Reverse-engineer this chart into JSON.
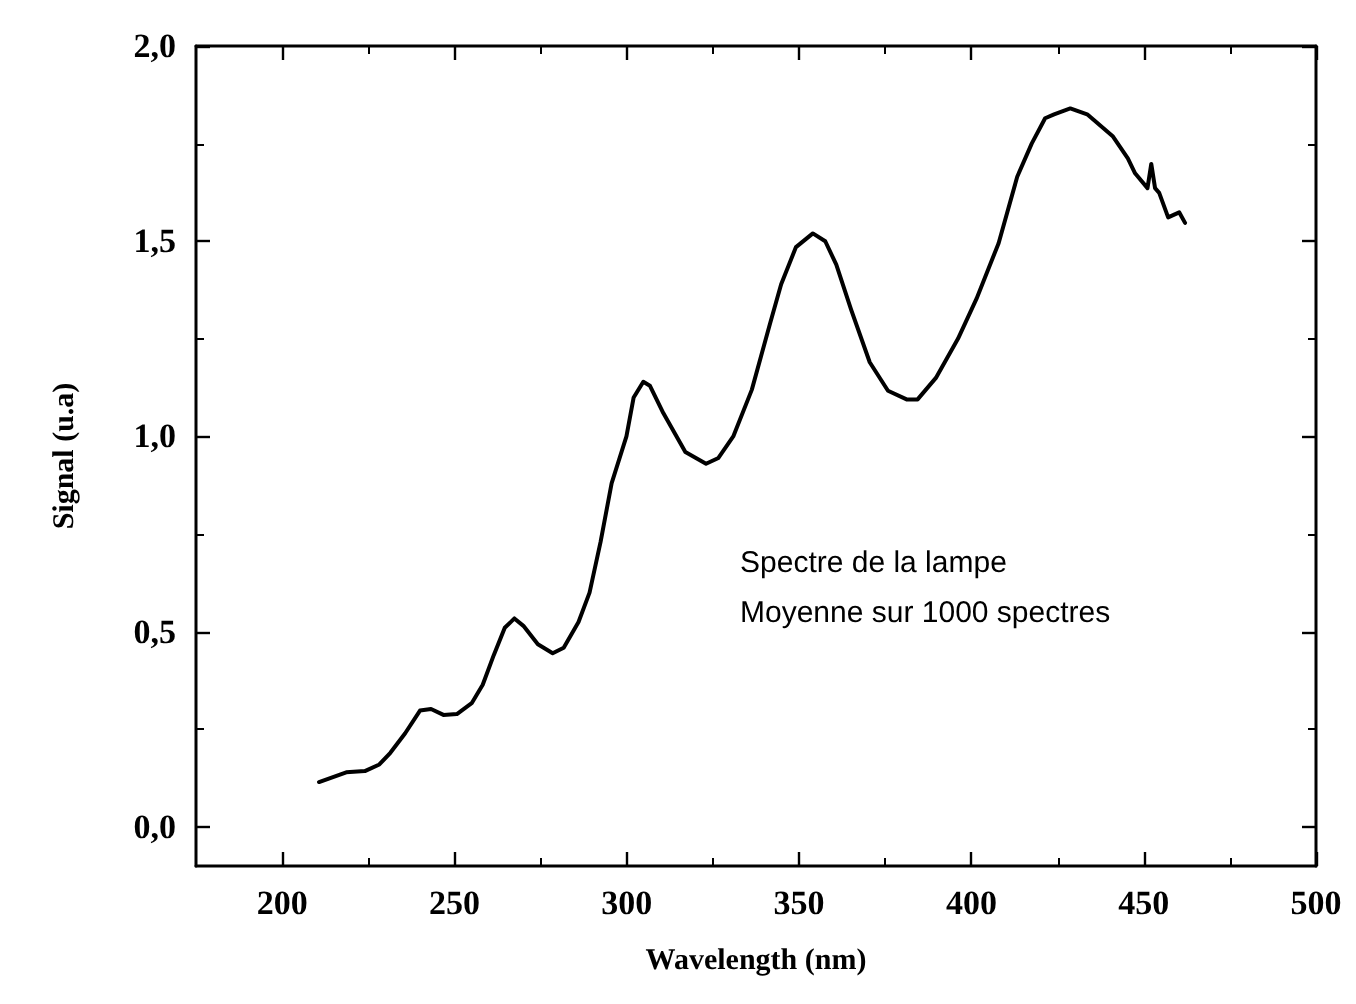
{
  "chart_data": {
    "type": "line",
    "xlabel": "Wavelength (nm)",
    "ylabel": "Signal (u.a)",
    "annotations": [
      "Spectre de la lampe",
      "Moyenne sur 1000 spectres"
    ],
    "xlim": [
      175,
      500
    ],
    "xticks": [
      200,
      250,
      300,
      350,
      400,
      450,
      500
    ],
    "ylim": [
      -0.1,
      2.0
    ],
    "yticks": [
      {
        "value": 0,
        "label": "0,0"
      },
      {
        "value": 0.5,
        "label": "0,5"
      },
      {
        "value": 1,
        "label": "1,0"
      },
      {
        "value": 1.5,
        "label": "1,5"
      },
      {
        "value": 2,
        "label": "2,0"
      }
    ],
    "grid": false,
    "marker": "none",
    "line_style": "solid",
    "series": [
      {
        "color": "#000000",
        "x": [
          210.7,
          218.6,
          224,
          228.2,
          231.4,
          235.7,
          240,
          243.2,
          246.8,
          250.7,
          255,
          258.2,
          261.4,
          264.6,
          267.4,
          270,
          274.2,
          278.5,
          281.7,
          286,
          289.2,
          292.4,
          295.6,
          299.9,
          302,
          304.8,
          306.7,
          310.6,
          317,
          323,
          326.6,
          330.9,
          336.3,
          341.6,
          344.8,
          349.1,
          354,
          357.6,
          360.8,
          365.1,
          370.5,
          375.8,
          381.2,
          384.4,
          389.7,
          396.1,
          401.5,
          407.9,
          413.3,
          417.5,
          421.4,
          424,
          428.7,
          433.6,
          441.1,
          445.4,
          447.5,
          451.1,
          452.2,
          453.3,
          454.5,
          457.1,
          460.3,
          462
        ],
        "values": [
          0.115,
          0.14,
          0.143,
          0.16,
          0.19,
          0.24,
          0.298,
          0.302,
          0.287,
          0.289,
          0.317,
          0.364,
          0.44,
          0.51,
          0.534,
          0.515,
          0.468,
          0.445,
          0.459,
          0.525,
          0.6,
          0.73,
          0.88,
          1.0,
          1.1,
          1.14,
          1.13,
          1.06,
          0.96,
          0.93,
          0.945,
          1.0,
          1.12,
          1.29,
          1.39,
          1.485,
          1.52,
          1.5,
          1.44,
          1.325,
          1.19,
          1.117,
          1.095,
          1.095,
          1.15,
          1.25,
          1.353,
          1.495,
          1.665,
          1.75,
          1.815,
          1.825,
          1.84,
          1.825,
          1.768,
          1.712,
          1.674,
          1.636,
          1.698,
          1.636,
          1.624,
          1.561,
          1.574,
          1.547
        ]
      }
    ]
  }
}
